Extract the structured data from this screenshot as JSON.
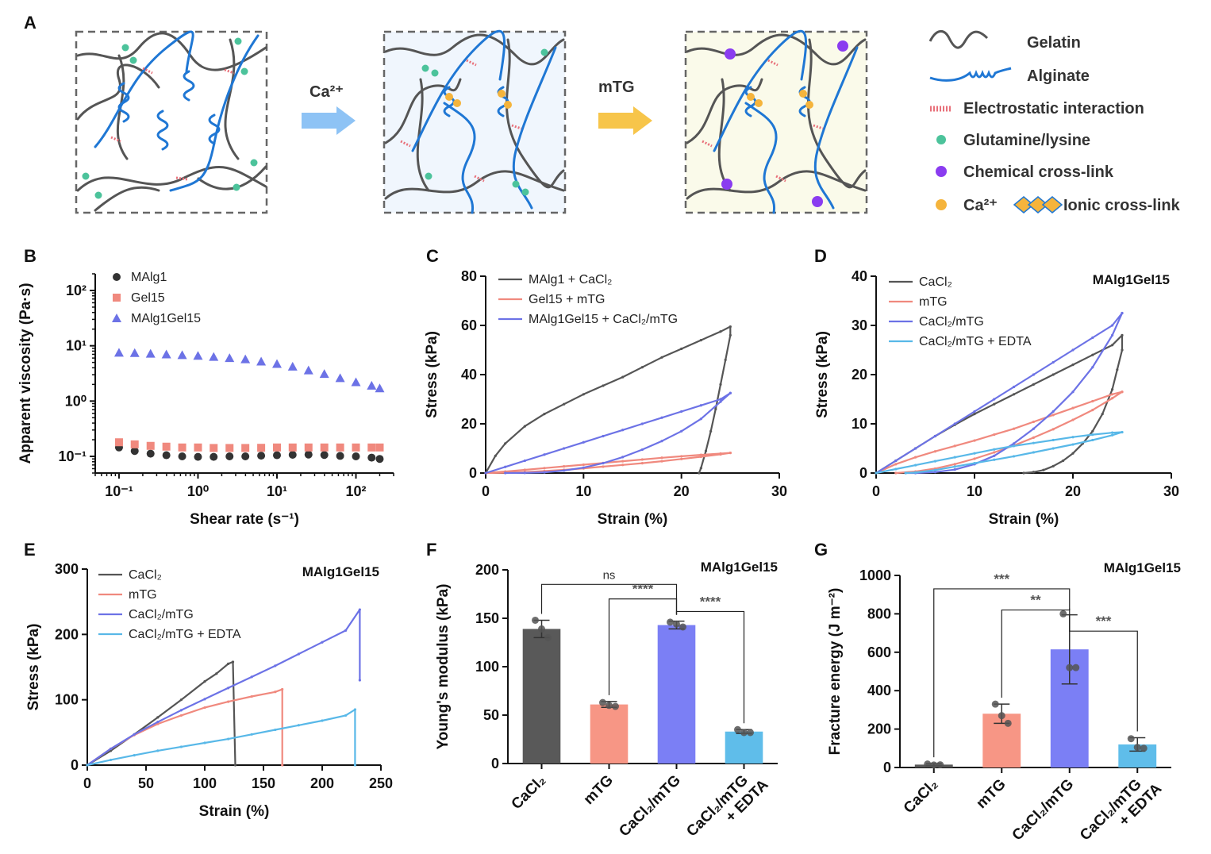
{
  "panel_labels": [
    "A",
    "B",
    "C",
    "D",
    "E",
    "F",
    "G"
  ],
  "schematic": {
    "arrow1_label": "Ca²⁺",
    "arrow2_label": "mTG",
    "legend": [
      {
        "icon": "gelatin-chain-icon",
        "label": "Gelatin",
        "color": "#555555"
      },
      {
        "icon": "alginate-chain-icon",
        "label": "Alginate",
        "color": "#1f77d4"
      },
      {
        "icon": "electrostatic-icon",
        "label": "Electrostatic interaction",
        "color": "#e8707a"
      },
      {
        "icon": "glutamine-dot-icon",
        "label": "Glutamine/lysine",
        "color": "#4cc39b"
      },
      {
        "icon": "chemical-crosslink-icon",
        "label": "Chemical cross-link",
        "color": "#8a3cf0"
      },
      {
        "icon": "calcium-dot-icon",
        "label": "Ca²⁺",
        "color": "#f5b43c"
      },
      {
        "icon": "ionic-crosslink-icon",
        "label": "Ionic cross-link",
        "color": "#f5b43c"
      }
    ]
  },
  "chart_data": [
    {
      "id": "B",
      "type": "scatter",
      "xlabel": "Shear rate (s⁻¹)",
      "ylabel": "Apparent viscosity (Pa·s)",
      "xscale": "log",
      "yscale": "log",
      "xlim": [
        0.05,
        300
      ],
      "ylim": [
        0.05,
        200
      ],
      "xticks": [
        0.1,
        1,
        10,
        100
      ],
      "xtick_labels": [
        "10⁻¹",
        "10⁰",
        "10¹",
        "10²"
      ],
      "yticks": [
        0.1,
        1,
        10,
        100
      ],
      "ytick_labels": [
        "10⁻¹",
        "10⁰",
        "10¹",
        "10²"
      ],
      "legend_position": "top-left",
      "series": [
        {
          "name": "MAlg1",
          "color": "#333333",
          "marker": "circle",
          "x": [
            0.1,
            0.158,
            0.251,
            0.398,
            0.631,
            1,
            1.58,
            2.51,
            3.98,
            6.31,
            10,
            15.8,
            25.1,
            39.8,
            63.1,
            100,
            158,
            200
          ],
          "y": [
            0.145,
            0.125,
            0.112,
            0.105,
            0.1,
            0.098,
            0.098,
            0.1,
            0.1,
            0.103,
            0.105,
            0.107,
            0.108,
            0.106,
            0.102,
            0.1,
            0.095,
            0.09
          ]
        },
        {
          "name": "Gel15",
          "color": "#f0897e",
          "marker": "square",
          "x": [
            0.1,
            0.158,
            0.251,
            0.398,
            0.631,
            1,
            1.58,
            2.51,
            3.98,
            6.31,
            10,
            15.8,
            25.1,
            39.8,
            63.1,
            100,
            158,
            200
          ],
          "y": [
            0.18,
            0.165,
            0.155,
            0.15,
            0.145,
            0.145,
            0.142,
            0.142,
            0.142,
            0.143,
            0.145,
            0.145,
            0.145,
            0.145,
            0.145,
            0.145,
            0.145,
            0.145
          ]
        },
        {
          "name": "MAlg1Gel15",
          "color": "#6c72e6",
          "marker": "triangle",
          "x": [
            0.1,
            0.158,
            0.251,
            0.398,
            0.631,
            1,
            1.58,
            2.51,
            3.98,
            6.31,
            10,
            15.8,
            25.1,
            39.8,
            63.1,
            100,
            158,
            200
          ],
          "y": [
            7.5,
            7.4,
            7.2,
            7.0,
            6.8,
            6.6,
            6.3,
            6.0,
            5.7,
            5.2,
            4.7,
            4.2,
            3.6,
            3.1,
            2.6,
            2.2,
            1.9,
            1.7
          ]
        }
      ]
    },
    {
      "id": "C",
      "type": "line",
      "xlabel": "Strain (%)",
      "ylabel": "Stress (kPa)",
      "xlim": [
        0,
        30
      ],
      "ylim": [
        0,
        80
      ],
      "xticks": [
        0,
        10,
        20,
        30
      ],
      "yticks": [
        0,
        20,
        40,
        60,
        80
      ],
      "legend_position": "top-left",
      "series": [
        {
          "name": "MAlg1 + CaCl₂",
          "color": "#555555",
          "x": [
            0,
            1,
            2,
            4,
            6,
            8,
            10,
            12,
            14,
            16,
            18,
            20,
            22,
            24,
            25,
            25,
            24.5,
            24,
            23.5,
            23,
            22.5,
            22,
            21.8
          ],
          "y": [
            0,
            7,
            12,
            19,
            24,
            28,
            32,
            35.5,
            39,
            43,
            47,
            50.5,
            54,
            57.5,
            59.5,
            56,
            46,
            36,
            26,
            17,
            9,
            2,
            0
          ]
        },
        {
          "name": "Gel15 + mTG",
          "color": "#f0897e",
          "x": [
            0,
            2,
            4,
            6,
            8,
            10,
            12,
            14,
            16,
            18,
            20,
            22,
            24,
            25,
            25,
            24,
            22,
            20,
            18,
            16,
            14,
            12,
            10,
            8,
            6,
            4,
            2,
            0
          ],
          "y": [
            0,
            0.6,
            1.3,
            2,
            2.7,
            3.4,
            4.1,
            4.8,
            5.5,
            6.2,
            6.8,
            7.4,
            7.9,
            8.2,
            8.2,
            7.6,
            6.6,
            5.7,
            4.8,
            4,
            3.3,
            2.6,
            1.9,
            1.3,
            0.8,
            0.4,
            0.1,
            0
          ]
        },
        {
          "name": "MAlg1Gel15 + CaCl₂/mTG",
          "color": "#6c72e6",
          "x": [
            0,
            2,
            4,
            6,
            8,
            10,
            12,
            14,
            16,
            18,
            20,
            22,
            24,
            25,
            25,
            24,
            22,
            20,
            18,
            16,
            14,
            12,
            10,
            8,
            6,
            4,
            2
          ],
          "y": [
            0,
            2.5,
            5,
            7.5,
            10,
            12.5,
            15,
            17.5,
            20,
            22.5,
            25,
            27.5,
            30,
            32.5,
            32.5,
            29,
            22,
            17,
            13,
            9.5,
            6.5,
            4,
            2.2,
            1,
            0.3,
            0.05,
            0
          ]
        }
      ]
    },
    {
      "id": "D",
      "type": "line",
      "title": "MAlg1Gel15",
      "xlabel": "Strain (%)",
      "ylabel": "Stress (kPa)",
      "xlim": [
        0,
        30
      ],
      "ylim": [
        0,
        40
      ],
      "xticks": [
        0,
        10,
        20,
        30
      ],
      "yticks": [
        0,
        10,
        20,
        30,
        40
      ],
      "legend_position": "top-left",
      "series": [
        {
          "name": "CaCl₂",
          "color": "#555555",
          "x": [
            0,
            2,
            4,
            6,
            8,
            10,
            12,
            14,
            16,
            18,
            20,
            22,
            24,
            25,
            25,
            24.5,
            24,
            23,
            22,
            21,
            20,
            19,
            18,
            17,
            16,
            15
          ],
          "y": [
            0,
            2.5,
            5,
            7.5,
            9.8,
            12,
            14,
            16,
            18,
            20,
            22,
            24,
            26,
            28,
            25,
            21,
            17,
            12,
            8.5,
            6,
            4,
            2.5,
            1.4,
            0.6,
            0.2,
            0
          ]
        },
        {
          "name": "mTG",
          "color": "#f0897e",
          "x": [
            0,
            2,
            4,
            6,
            8,
            10,
            12,
            14,
            16,
            18,
            20,
            22,
            24,
            25,
            25,
            24,
            22,
            20,
            18,
            16,
            14,
            12,
            10,
            8,
            6,
            4,
            2
          ],
          "y": [
            0,
            1.8,
            3.2,
            4.4,
            5.5,
            6.6,
            7.8,
            9,
            10.4,
            11.8,
            13.2,
            14.6,
            16,
            16.5,
            16.5,
            15.2,
            12.8,
            10.8,
            8.9,
            7.2,
            5.6,
            4.2,
            2.9,
            1.8,
            0.9,
            0.3,
            0
          ]
        },
        {
          "name": "CaCl₂/mTG",
          "color": "#6c72e6",
          "x": [
            0,
            2,
            4,
            6,
            8,
            10,
            12,
            14,
            16,
            18,
            20,
            22,
            24,
            25,
            25,
            24,
            22,
            20,
            18,
            16,
            14,
            12,
            10,
            8,
            6,
            4,
            3
          ],
          "y": [
            0,
            2.5,
            5,
            7.5,
            10,
            12.5,
            15,
            17.5,
            20,
            22.5,
            25,
            27.5,
            30,
            32.5,
            32.5,
            28,
            21.5,
            16.5,
            12.5,
            9,
            6,
            3.5,
            1.8,
            0.7,
            0.2,
            0,
            0
          ]
        },
        {
          "name": "CaCl₂/mTG + EDTA",
          "color": "#58b8e8",
          "x": [
            0,
            2,
            4,
            6,
            8,
            10,
            12,
            14,
            16,
            18,
            20,
            22,
            24,
            25,
            25,
            24,
            22,
            20,
            18,
            16,
            14,
            12,
            10,
            8,
            6,
            4,
            3
          ],
          "y": [
            0,
            0.8,
            1.6,
            2.4,
            3.2,
            4,
            4.8,
            5.5,
            6.1,
            6.7,
            7.3,
            7.8,
            8.2,
            8.3,
            8.3,
            7.7,
            6.7,
            5.8,
            5,
            4.2,
            3.4,
            2.7,
            2,
            1.3,
            0.6,
            0.1,
            0
          ]
        }
      ]
    },
    {
      "id": "E",
      "type": "line",
      "title": "MAlg1Gel15",
      "xlabel": "Strain (%)",
      "ylabel": "Stress (kPa)",
      "xlim": [
        0,
        250
      ],
      "ylim": [
        0,
        300
      ],
      "xticks": [
        0,
        50,
        100,
        150,
        200,
        250
      ],
      "yticks": [
        0,
        100,
        200,
        300
      ],
      "legend_position": "top-left",
      "series": [
        {
          "name": "CaCl₂",
          "color": "#555555",
          "x": [
            0,
            20,
            40,
            60,
            80,
            100,
            110,
            120,
            124,
            126
          ],
          "y": [
            0,
            22,
            47,
            73,
            100,
            128,
            140,
            155,
            158,
            0
          ]
        },
        {
          "name": "mTG",
          "color": "#f0897e",
          "x": [
            0,
            20,
            40,
            60,
            80,
            100,
            120,
            140,
            160,
            166,
            166
          ],
          "y": [
            0,
            25,
            46,
            63,
            76,
            88,
            97,
            105,
            112,
            116,
            0
          ]
        },
        {
          "name": "CaCl₂/mTG",
          "color": "#6c72e6",
          "x": [
            0,
            20,
            40,
            60,
            80,
            100,
            120,
            140,
            160,
            180,
            200,
            220,
            232,
            232
          ],
          "y": [
            0,
            25,
            47,
            66,
            84,
            101,
            118,
            135,
            152,
            170,
            188,
            206,
            238,
            130
          ]
        },
        {
          "name": "CaCl₂/mTG + EDTA",
          "color": "#58b8e8",
          "x": [
            0,
            20,
            40,
            60,
            80,
            100,
            120,
            140,
            160,
            180,
            200,
            220,
            228,
            228
          ],
          "y": [
            0,
            8,
            15,
            22,
            28,
            34,
            40,
            47,
            54,
            61,
            68,
            76,
            85,
            0
          ]
        }
      ]
    },
    {
      "id": "F",
      "type": "bar",
      "title": "MAlg1Gel15",
      "ylabel": "Young's modulus (kPa)",
      "ylim": [
        0,
        200
      ],
      "yticks": [
        0,
        50,
        100,
        150,
        200
      ],
      "categories": [
        "CaCl₂",
        "mTG",
        "CaCl₂/mTG",
        "CaCl₂/mTG\n+ EDTA"
      ],
      "values": [
        139,
        61,
        143,
        33
      ],
      "errors": [
        9,
        3,
        4,
        2
      ],
      "points": [
        [
          148,
          139,
          130
        ],
        [
          63,
          60,
          59
        ],
        [
          146,
          144,
          141
        ],
        [
          35,
          32,
          32
        ]
      ],
      "colors": [
        "#595959",
        "#f79685",
        "#7b7ff5",
        "#5fbdea"
      ],
      "significance": [
        {
          "from": 0,
          "to": 2,
          "label": "ns",
          "level": 185
        },
        {
          "from": 1,
          "to": 2,
          "label": "****",
          "level": 170
        },
        {
          "from": 2,
          "to": 3,
          "label": "****",
          "level": 157
        }
      ]
    },
    {
      "id": "G",
      "type": "bar",
      "title": "MAlg1Gel15",
      "ylabel": "Fracture energy (J m⁻²)",
      "ylim": [
        0,
        1000
      ],
      "yticks": [
        0,
        200,
        400,
        600,
        800,
        1000
      ],
      "categories": [
        "CaCl₂",
        "mTG",
        "CaCl₂/mTG",
        "CaCl₂/mTG\n+ EDTA"
      ],
      "values": [
        15,
        280,
        615,
        120
      ],
      "errors": [
        5,
        50,
        180,
        35
      ],
      "points": [
        [
          18,
          13,
          14
        ],
        [
          330,
          270,
          230
        ],
        [
          800,
          520,
          520
        ],
        [
          150,
          105,
          100
        ]
      ],
      "colors": [
        "#595959",
        "#f79685",
        "#7b7ff5",
        "#5fbdea"
      ],
      "significance": [
        {
          "from": 0,
          "to": 2,
          "label": "***",
          "level": 930
        },
        {
          "from": 1,
          "to": 2,
          "label": "**",
          "level": 820
        },
        {
          "from": 2,
          "to": 3,
          "label": "***",
          "level": 710
        }
      ]
    }
  ]
}
